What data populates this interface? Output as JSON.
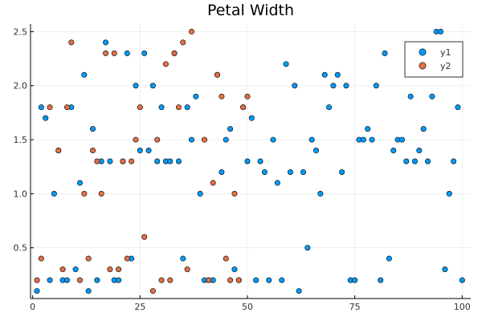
{
  "chart_data": {
    "type": "scatter",
    "title": "Petal Width",
    "xlabel": "",
    "ylabel": "",
    "xlim": [
      -0.5,
      102
    ],
    "ylim": [
      0.03,
      2.57
    ],
    "xticks": [
      0,
      25,
      50,
      75,
      100
    ],
    "xtick_labels": [
      "0",
      "25",
      "50",
      "75",
      "100"
    ],
    "yticks": [
      0.5,
      1.0,
      1.5,
      2.0,
      2.5
    ],
    "ytick_labels": [
      "0.5",
      "1.0",
      "1.5",
      "2.0",
      "2.5"
    ],
    "grid": true,
    "legend_position": "top-right",
    "series": [
      {
        "name": "y1",
        "color": "#009AFA",
        "x": [
          1,
          2,
          3,
          4,
          5,
          6,
          7,
          8,
          9,
          10,
          11,
          12,
          13,
          14,
          15,
          16,
          17,
          18,
          19,
          20,
          21,
          22,
          23,
          24,
          25,
          26,
          27,
          28,
          29,
          30,
          31,
          32,
          33,
          34,
          35,
          36,
          37,
          38,
          39,
          40,
          41,
          42,
          43,
          44,
          45,
          46,
          47,
          48,
          49,
          50,
          51,
          52,
          53,
          54,
          55,
          56,
          57,
          58,
          59,
          60,
          61,
          62,
          63,
          64,
          65,
          66,
          67,
          68,
          69,
          70,
          71,
          72,
          73,
          74,
          75,
          76,
          77,
          78,
          79,
          80,
          81,
          82,
          83,
          84,
          85,
          86,
          87,
          88,
          89,
          90,
          91,
          92,
          93,
          94,
          95,
          96,
          97,
          98,
          99,
          100
        ],
        "y": [
          0.1,
          1.8,
          1.7,
          0.2,
          1.0,
          1.4,
          0.2,
          0.2,
          1.8,
          0.3,
          1.1,
          2.1,
          0.1,
          1.6,
          0.2,
          1.3,
          2.4,
          1.3,
          0.2,
          0.2,
          1.3,
          2.3,
          0.4,
          2.0,
          1.4,
          2.3,
          1.4,
          2.0,
          1.3,
          1.8,
          1.3,
          1.3,
          2.3,
          1.3,
          0.4,
          1.8,
          1.5,
          1.9,
          1.0,
          0.2,
          0.2,
          0.2,
          2.1,
          1.2,
          1.5,
          1.6,
          0.3,
          0.2,
          1.8,
          1.3,
          1.7,
          0.2,
          1.3,
          1.2,
          0.2,
          1.5,
          1.1,
          0.2,
          2.2,
          1.2,
          2.0,
          0.1,
          1.2,
          0.5,
          1.5,
          1.4,
          1.0,
          2.1,
          1.8,
          2.0,
          2.1,
          1.2,
          2.0,
          0.2,
          0.2,
          1.5,
          1.5,
          1.6,
          1.5,
          2.0,
          0.2,
          2.3,
          0.4,
          1.4,
          1.5,
          1.5,
          1.3,
          1.9,
          1.3,
          1.4,
          1.6,
          1.3,
          1.9,
          2.5,
          2.5,
          0.3,
          1.0,
          1.3,
          1.8,
          0.2
        ]
      },
      {
        "name": "y2",
        "color": "#E26F46",
        "x": [
          1,
          2,
          4,
          6,
          7,
          8,
          9,
          11,
          12,
          13,
          14,
          15,
          16,
          17,
          18,
          19,
          20,
          21,
          22,
          23,
          24,
          25,
          26,
          28,
          29,
          30,
          31,
          32,
          33,
          34,
          35,
          36,
          37,
          40,
          41,
          42,
          43,
          44,
          45,
          46,
          47,
          48,
          49,
          50
        ],
        "y": [
          0.2,
          0.4,
          1.8,
          1.4,
          0.3,
          1.8,
          2.4,
          0.2,
          1.0,
          0.4,
          1.4,
          1.3,
          1.0,
          2.3,
          0.3,
          2.3,
          0.3,
          1.3,
          0.4,
          1.3,
          1.5,
          1.8,
          0.6,
          0.1,
          1.5,
          0.2,
          2.2,
          0.2,
          2.3,
          1.8,
          2.4,
          0.3,
          2.5,
          1.5,
          0.2,
          1.1,
          2.1,
          1.9,
          0.4,
          0.2,
          1.0,
          0.2,
          1.8,
          1.9
        ]
      }
    ]
  }
}
